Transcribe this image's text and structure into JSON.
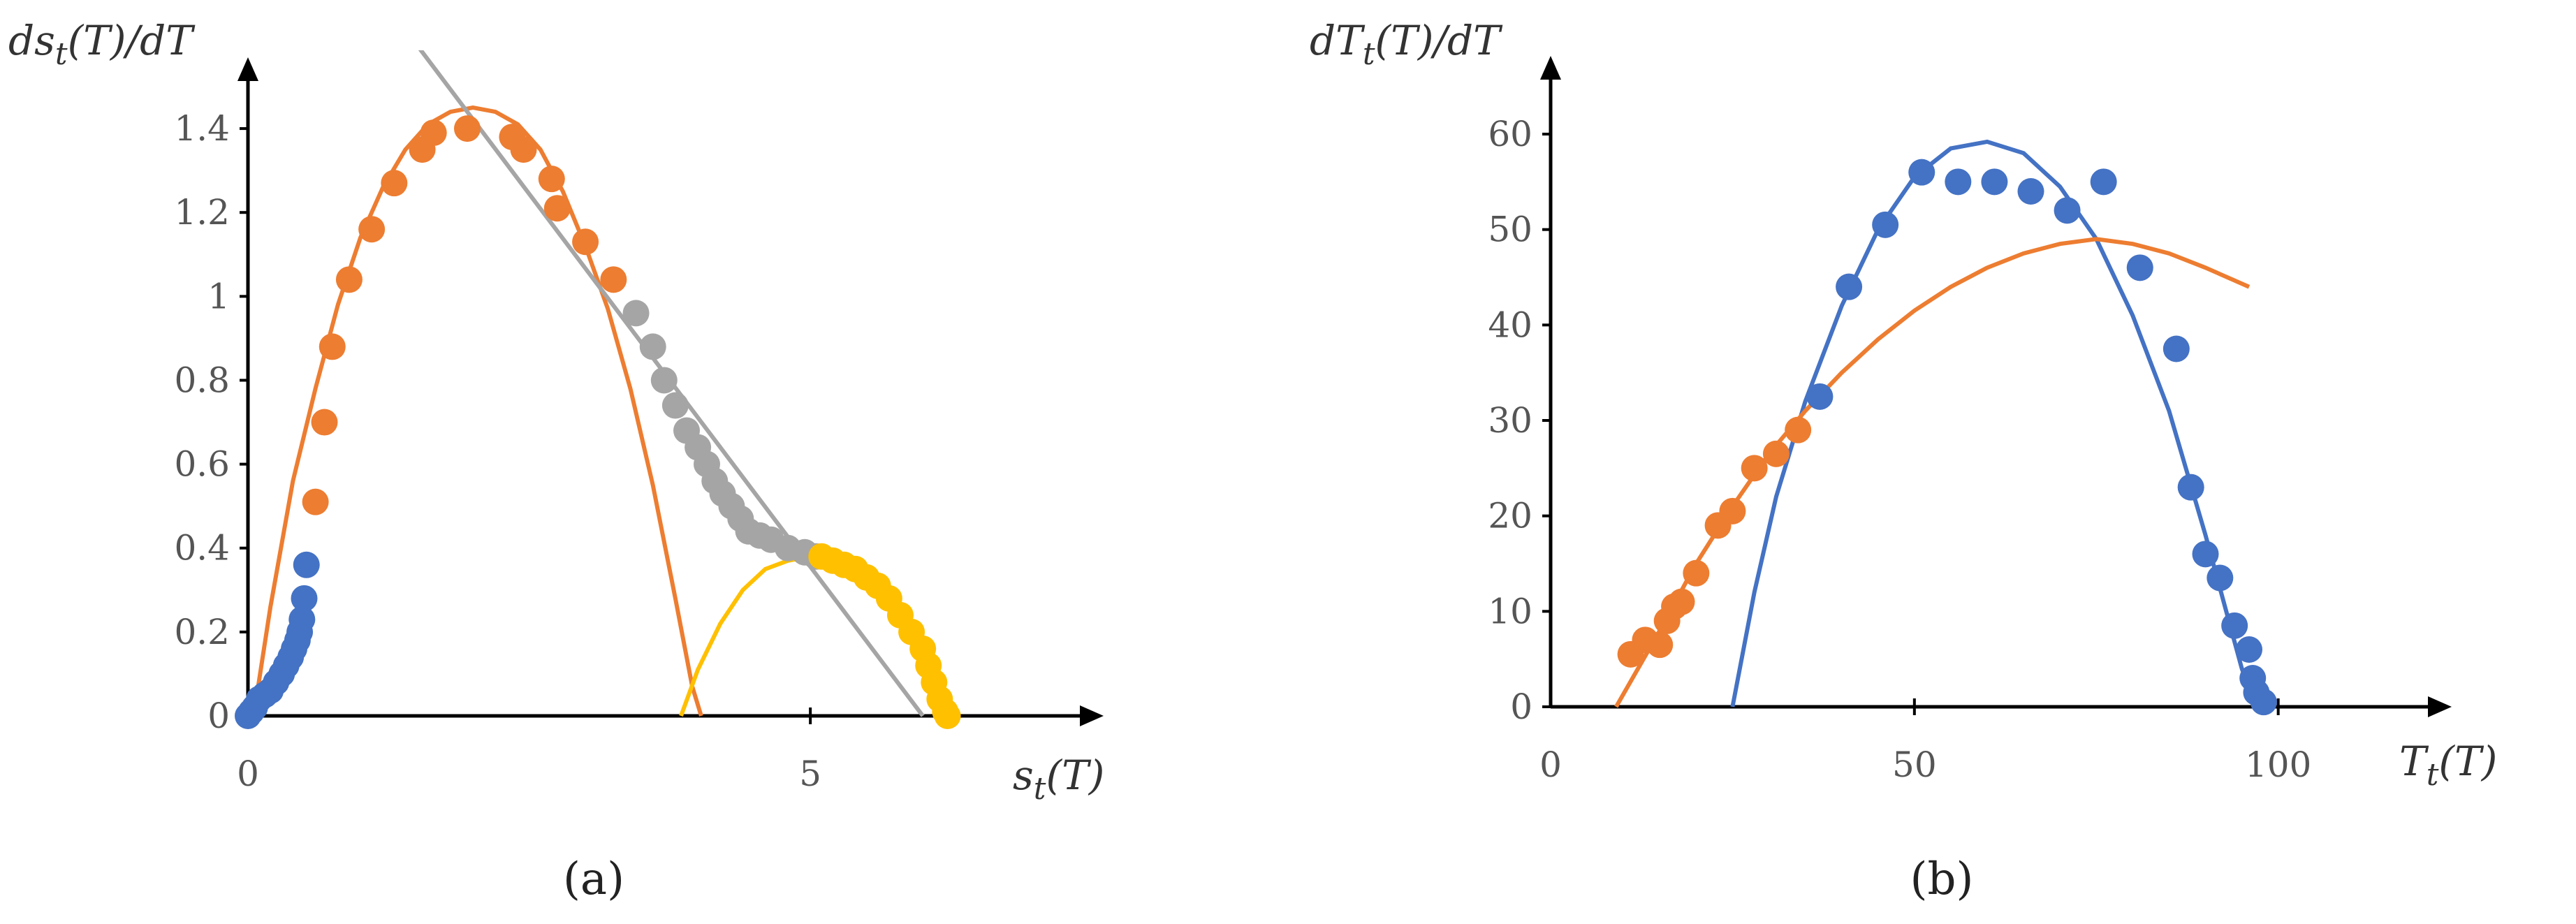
{
  "chart_data": [
    {
      "type": "scatter",
      "panel_label": "(a)",
      "xlabel": "s_t(T)",
      "ylabel": "ds_t(T)/dT",
      "xlim": [
        0,
        6.8
      ],
      "ylim": [
        0,
        1.52
      ],
      "xticks": [
        0,
        5
      ],
      "yticks": [
        0,
        0.2,
        0.4,
        0.6,
        0.8,
        1,
        1.2,
        1.4
      ],
      "colors": {
        "blue": "#4472C4",
        "orange": "#ED7D31",
        "gray": "#A5A5A5",
        "yellow": "#FFC000"
      },
      "scatter_series": [
        {
          "color": "blue",
          "points": [
            [
              0.0,
              0.0
            ],
            [
              0.03,
              0.01
            ],
            [
              0.06,
              0.02
            ],
            [
              0.1,
              0.04
            ],
            [
              0.15,
              0.05
            ],
            [
              0.2,
              0.06
            ],
            [
              0.25,
              0.08
            ],
            [
              0.3,
              0.1
            ],
            [
              0.34,
              0.12
            ],
            [
              0.38,
              0.14
            ],
            [
              0.41,
              0.16
            ],
            [
              0.44,
              0.18
            ],
            [
              0.46,
              0.2
            ],
            [
              0.48,
              0.23
            ],
            [
              0.5,
              0.28
            ],
            [
              0.52,
              0.36
            ]
          ]
        },
        {
          "color": "orange",
          "points": [
            [
              0.6,
              0.51
            ],
            [
              0.68,
              0.7
            ],
            [
              0.75,
              0.88
            ],
            [
              0.9,
              1.04
            ],
            [
              1.1,
              1.16
            ],
            [
              1.3,
              1.27
            ],
            [
              1.55,
              1.35
            ],
            [
              1.65,
              1.39
            ],
            [
              1.95,
              1.4
            ],
            [
              2.35,
              1.38
            ],
            [
              2.45,
              1.35
            ],
            [
              2.7,
              1.28
            ],
            [
              2.75,
              1.21
            ],
            [
              3.0,
              1.13
            ],
            [
              3.25,
              1.04
            ]
          ]
        },
        {
          "color": "gray",
          "points": [
            [
              3.45,
              0.96
            ],
            [
              3.6,
              0.88
            ],
            [
              3.7,
              0.8
            ],
            [
              3.8,
              0.74
            ],
            [
              3.9,
              0.68
            ],
            [
              4.0,
              0.64
            ],
            [
              4.08,
              0.6
            ],
            [
              4.15,
              0.56
            ],
            [
              4.22,
              0.53
            ],
            [
              4.3,
              0.5
            ],
            [
              4.38,
              0.47
            ],
            [
              4.45,
              0.44
            ],
            [
              4.55,
              0.43
            ],
            [
              4.65,
              0.42
            ],
            [
              4.8,
              0.4
            ],
            [
              4.95,
              0.39
            ],
            [
              5.05,
              0.38
            ]
          ]
        },
        {
          "color": "yellow",
          "points": [
            [
              5.1,
              0.38
            ],
            [
              5.2,
              0.37
            ],
            [
              5.3,
              0.36
            ],
            [
              5.4,
              0.35
            ],
            [
              5.5,
              0.33
            ],
            [
              5.6,
              0.31
            ],
            [
              5.7,
              0.28
            ],
            [
              5.8,
              0.24
            ],
            [
              5.9,
              0.2
            ],
            [
              6.0,
              0.16
            ],
            [
              6.05,
              0.12
            ],
            [
              6.1,
              0.08
            ],
            [
              6.15,
              0.04
            ],
            [
              6.2,
              0.01
            ],
            [
              6.22,
              0.0
            ]
          ]
        }
      ],
      "curves": [
        {
          "color": "orange",
          "points": [
            [
              0.05,
              0.0
            ],
            [
              0.2,
              0.26
            ],
            [
              0.4,
              0.56
            ],
            [
              0.6,
              0.78
            ],
            [
              0.8,
              0.98
            ],
            [
              1.0,
              1.14
            ],
            [
              1.2,
              1.26
            ],
            [
              1.4,
              1.35
            ],
            [
              1.6,
              1.41
            ],
            [
              1.8,
              1.44
            ],
            [
              2.0,
              1.45
            ],
            [
              2.2,
              1.44
            ],
            [
              2.4,
              1.41
            ],
            [
              2.6,
              1.35
            ],
            [
              2.8,
              1.25
            ],
            [
              3.0,
              1.12
            ],
            [
              3.2,
              0.97
            ],
            [
              3.4,
              0.78
            ],
            [
              3.6,
              0.55
            ],
            [
              3.8,
              0.28
            ],
            [
              3.95,
              0.07
            ],
            [
              4.03,
              0.0
            ]
          ]
        },
        {
          "color": "gray",
          "points": [
            [
              1.5,
              1.6
            ],
            [
              6.0,
              0.0
            ]
          ]
        },
        {
          "color": "yellow",
          "points": [
            [
              3.85,
              0.0
            ],
            [
              4.0,
              0.11
            ],
            [
              4.2,
              0.22
            ],
            [
              4.4,
              0.3
            ],
            [
              4.6,
              0.35
            ],
            [
              4.8,
              0.37
            ],
            [
              5.0,
              0.38
            ],
            [
              5.2,
              0.38
            ],
            [
              5.4,
              0.37
            ],
            [
              5.6,
              0.33
            ],
            [
              5.8,
              0.26
            ],
            [
              6.0,
              0.15
            ],
            [
              6.15,
              0.05
            ],
            [
              6.22,
              0.0
            ]
          ]
        }
      ]
    },
    {
      "type": "scatter",
      "panel_label": "(b)",
      "xlabel": "T_t(T)",
      "ylabel": "dT_t(T)/dT",
      "xlim": [
        0,
        120
      ],
      "ylim": [
        0,
        66
      ],
      "xticks": [
        0,
        50,
        100
      ],
      "yticks": [
        0,
        10,
        20,
        30,
        40,
        50,
        60
      ],
      "colors": {
        "blue": "#4472C4",
        "orange": "#ED7D31"
      },
      "scatter_series": [
        {
          "color": "orange",
          "points": [
            [
              11,
              5.5
            ],
            [
              13,
              7
            ],
            [
              15,
              6.5
            ],
            [
              16,
              9
            ],
            [
              17,
              10.5
            ],
            [
              18,
              11
            ],
            [
              20,
              14
            ],
            [
              23,
              19
            ],
            [
              25,
              20.5
            ],
            [
              28,
              25
            ],
            [
              31,
              26.5
            ],
            [
              34,
              29
            ]
          ]
        },
        {
          "color": "blue",
          "points": [
            [
              37,
              32.5
            ],
            [
              41,
              44
            ],
            [
              46,
              50.5
            ],
            [
              51,
              56
            ],
            [
              56,
              55
            ],
            [
              61,
              55
            ],
            [
              66,
              54
            ],
            [
              71,
              52
            ],
            [
              76,
              55
            ],
            [
              81,
              46
            ],
            [
              86,
              37.5
            ],
            [
              88,
              23
            ],
            [
              90,
              16
            ],
            [
              92,
              13.5
            ],
            [
              94,
              8.5
            ],
            [
              96,
              6
            ],
            [
              96.5,
              3
            ],
            [
              97,
              1.5
            ],
            [
              98,
              0.5
            ]
          ]
        }
      ],
      "curves": [
        {
          "color": "blue",
          "points": [
            [
              25,
              0
            ],
            [
              28,
              12
            ],
            [
              31,
              22
            ],
            [
              35,
              32
            ],
            [
              40,
              42
            ],
            [
              45,
              50
            ],
            [
              50,
              55.5
            ],
            [
              55,
              58.5
            ],
            [
              60,
              59.2
            ],
            [
              65,
              58
            ],
            [
              70,
              54.5
            ],
            [
              75,
              49
            ],
            [
              80,
              41
            ],
            [
              85,
              31
            ],
            [
              90,
              18
            ],
            [
              95,
              4
            ],
            [
              97,
              0
            ]
          ]
        },
        {
          "color": "orange",
          "points": [
            [
              9,
              0
            ],
            [
              15,
              8
            ],
            [
              20,
              15
            ],
            [
              25,
              21
            ],
            [
              30,
              26.5
            ],
            [
              35,
              31
            ],
            [
              40,
              35
            ],
            [
              45,
              38.5
            ],
            [
              50,
              41.5
            ],
            [
              55,
              44
            ],
            [
              60,
              46
            ],
            [
              65,
              47.5
            ],
            [
              70,
              48.5
            ],
            [
              75,
              49
            ],
            [
              80,
              48.5
            ],
            [
              85,
              47.5
            ],
            [
              90,
              46
            ],
            [
              96,
              44
            ]
          ]
        }
      ]
    }
  ]
}
